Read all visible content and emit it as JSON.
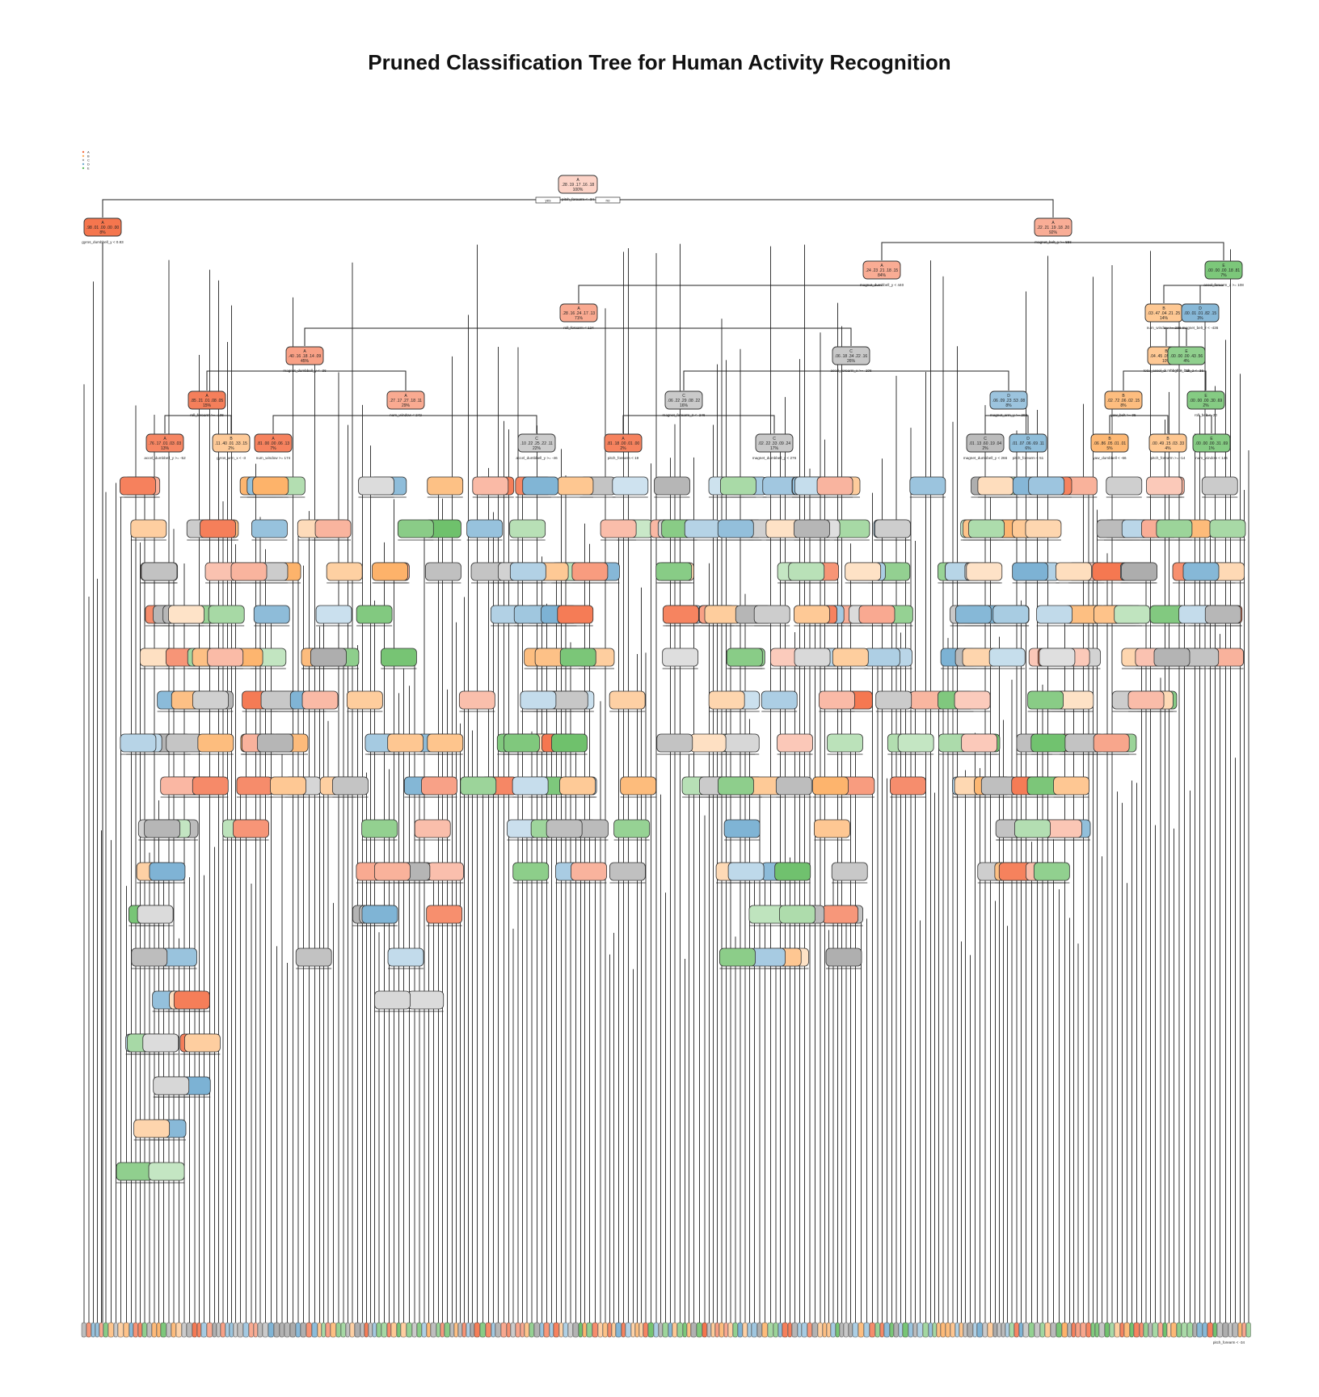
{
  "title": "Pruned Classification Tree for Human Activity Recognition",
  "legend": {
    "entries": [
      "A",
      "B",
      "C",
      "D",
      "E"
    ]
  },
  "class_colors": {
    "A": "#f46d43",
    "B": "#fdae61",
    "C": "#a6a6a6",
    "D": "#74add1",
    "E": "#66bd63"
  },
  "root": {
    "cls": "A",
    "probs": ".28 .19 .17 .16 .18",
    "pct": "100%",
    "split": "pitch_forearm < -34",
    "yes": "yes",
    "no": "no"
  },
  "nodes": [
    {
      "id": "n1",
      "cls": "A",
      "probs": ".98 .01 .00 .00 .00",
      "pct": "8%",
      "split": "gyros_dumbbell_y < 0.83"
    },
    {
      "id": "n2",
      "cls": "A",
      "probs": ".22 .21 .19 .18 .20",
      "pct": "92%",
      "split": "magnet_belt_y >= 556"
    },
    {
      "id": "n3",
      "cls": "A",
      "probs": ".24 .23 .21 .18 .15",
      "pct": "84%",
      "split": "magnet_dumbbell_y < 440"
    },
    {
      "id": "n4",
      "cls": "E",
      "probs": ".00 .00 .00 .18 .81",
      "pct": "7%",
      "split": "accel_forearm_z >= 108"
    },
    {
      "id": "n5",
      "cls": "A",
      "probs": ".28 .16 .24 .17 .13",
      "pct": "71%",
      "split": "roll_forearm < 124"
    },
    {
      "id": "n6",
      "cls": "B",
      "probs": ".03 .47 .04 .21 .25",
      "pct": "14%",
      "split": "num_window >= 238"
    },
    {
      "id": "n7",
      "cls": "D",
      "probs": ".00 .01 .01 .82 .15",
      "pct": "3%",
      "split": "magnet_belt_z < -436"
    },
    {
      "id": "n8",
      "cls": "A",
      "probs": ".40 .16 .18 .14 .09",
      "pct": "45%",
      "split": "magnet_dumbbell_y < -36"
    },
    {
      "id": "n9",
      "cls": "C",
      "probs": ".06 .18 .34 .22 .16",
      "pct": "26%",
      "split": "accel_forearm_x >= -106"
    },
    {
      "id": "n10",
      "cls": "B",
      "probs": ".04 .45 .05 .13 .13",
      "pct": "10%",
      "split": "total_accel_dumbbell >= 32"
    },
    {
      "id": "n11",
      "cls": "E",
      "probs": ".00 .00 .00 .43 .56",
      "pct": "4%",
      "split": "magnet_belt_z < -36"
    },
    {
      "id": "n12",
      "cls": "A",
      "probs": ".85 .21 .01 .08 .05",
      "pct": "15%",
      "split": "roll_forearm >= -136"
    },
    {
      "id": "n13",
      "cls": "A",
      "probs": ".27 .17 .27 .18 .11",
      "pct": "29%",
      "split": "num_window < 242"
    },
    {
      "id": "n14",
      "cls": "C",
      "probs": ".06 .22 .29 .08 .22",
      "pct": "16%",
      "split": "magnet_forearm_z < -246"
    },
    {
      "id": "n15",
      "cls": "D",
      "probs": ".06 .09 .23 .53 .08",
      "pct": "8%",
      "split": "magnet_arm_y >= 292"
    },
    {
      "id": "n16",
      "cls": "B",
      "probs": ".02 .72 .06 .02 .15",
      "pct": "8%",
      "split": "yaw_belt >= 95"
    },
    {
      "id": "n17",
      "cls": "E",
      "probs": ".00 .00 .00 .30 .69",
      "pct": "2%",
      "split": "roll_belt < -20"
    },
    {
      "id": "n18",
      "cls": "A",
      "probs": ".76 .17 .01 .03 .03",
      "pct": "13%",
      "split": "accel_dumbbell_y >= -52"
    },
    {
      "id": "n19",
      "cls": "B",
      "probs": ".11 .40 .01 .33 .15",
      "pct": "2%",
      "split": "gyros_arm_x < -3"
    },
    {
      "id": "n20",
      "cls": "A",
      "probs": ".81 .00 .00 .06 .13",
      "pct": "7%",
      "split": "num_window >= 174"
    },
    {
      "id": "n21",
      "cls": "C",
      "probs": ".10 .22 .25 .22 .11",
      "pct": "22%",
      "split": "accel_dumbbell_y >= -46"
    },
    {
      "id": "n22",
      "cls": "A",
      "probs": ".81 .18 .00 .01 .00",
      "pct": "2%",
      "split": "pitch_forearm < 19"
    },
    {
      "id": "n23",
      "cls": "C",
      "probs": ".02 .22 .33 .09 .24",
      "pct": "17%",
      "split": "magnet_dumbbell_y < 276"
    },
    {
      "id": "n24",
      "cls": "C",
      "probs": ".01 .13 .60 .19 .04",
      "pct": "2%",
      "split": "magnet_dumbbell_y < 266"
    },
    {
      "id": "n25",
      "cls": "D",
      "probs": ".01 .07 .06 .69 .11",
      "pct": "6%",
      "split": "pitch_forearm < 51"
    },
    {
      "id": "n26",
      "cls": "B",
      "probs": ".06 .86 .05 .01 .01",
      "pct": "5%",
      "split": "yaw_dumbbell < -66"
    },
    {
      "id": "n27",
      "cls": "B",
      "probs": ".00 .49 .15 .03 .33",
      "pct": "4%",
      "split": "pitch_forearm >= -14"
    },
    {
      "id": "n28",
      "cls": "E",
      "probs": ".00 .00 .00 .31 .69",
      "pct": "1%",
      "split": "num_window < 144"
    }
  ],
  "bottom_edge": "pitch_forearm < -34"
}
